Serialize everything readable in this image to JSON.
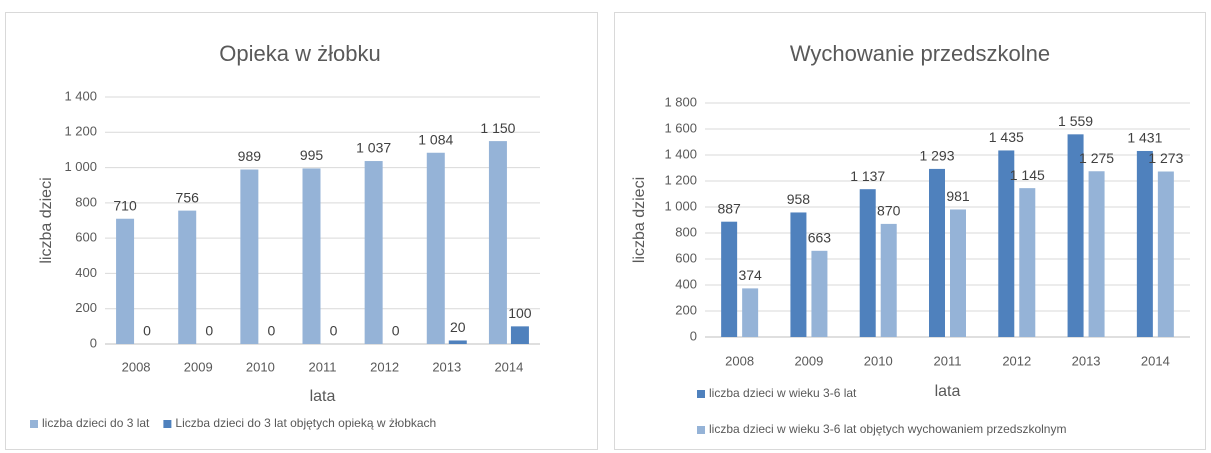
{
  "chart_data": [
    {
      "type": "bar",
      "title": "Opieka w żłobku",
      "x_label": "lata",
      "y_label": "liczba dzieci",
      "categories": [
        "2008",
        "2009",
        "2010",
        "2011",
        "2012",
        "2013",
        "2014"
      ],
      "series": [
        {
          "name": "liczba dzieci  do 3 lat",
          "color": "#95b3d7",
          "values": [
            710,
            756,
            989,
            995,
            1037,
            1084,
            1150
          ],
          "value_labels": [
            "710",
            "756",
            "989",
            "995",
            "1 037",
            "1 084",
            "1 150"
          ]
        },
        {
          "name": "Liczba dzieci do 3 lat objętych opieką w żłobkach",
          "color": "#4f81bd",
          "values": [
            0,
            0,
            0,
            0,
            0,
            20,
            100
          ]
        }
      ],
      "ylim": [
        0,
        1400
      ],
      "yticks": [
        0,
        200,
        400,
        600,
        800,
        {
          "value": 1000,
          "label": "1 000"
        },
        {
          "value": 1200,
          "label": "1 200"
        },
        {
          "value": 1400,
          "label": "1 400"
        }
      ],
      "grid": true
    },
    {
      "type": "bar",
      "title": "Wychowanie przedszkolne",
      "x_label": "lata",
      "y_label": "liczba dzieci",
      "categories": [
        "2008",
        "2009",
        "2010",
        "2011",
        "2012",
        "2013",
        "2014"
      ],
      "series": [
        {
          "name": "liczba dzieci w wieku 3-6 lat",
          "color": "#4f81bd",
          "values": [
            887,
            958,
            1137,
            1293,
            1435,
            1559,
            1431
          ],
          "value_labels": [
            "887",
            "958",
            "1 137",
            "1 293",
            "1 435",
            "1 559",
            "1 431"
          ]
        },
        {
          "name": "liczba dzieci w wieku 3-6 lat objętych wychowaniem przedszkolnym",
          "color": "#95b3d7",
          "values": [
            374,
            663,
            870,
            981,
            1145,
            1275,
            1273
          ],
          "value_labels": [
            "374",
            "663",
            "870",
            "981",
            "1 145",
            "1 275",
            "1 273"
          ]
        }
      ],
      "ylim": [
        0,
        1800
      ],
      "yticks": [
        0,
        200,
        400,
        600,
        800,
        {
          "value": 1000,
          "label": "1 000"
        },
        {
          "value": 1200,
          "label": "1 200"
        },
        {
          "value": 1400,
          "label": "1 400"
        },
        {
          "value": 1600,
          "label": "1 600"
        },
        {
          "value": 1800,
          "label": "1 800"
        }
      ],
      "grid": true
    }
  ]
}
